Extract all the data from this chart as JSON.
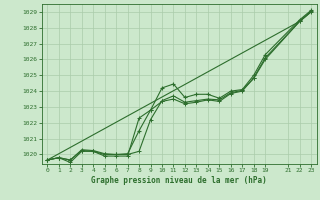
{
  "bg_color": "#cce8cc",
  "grid_color": "#aaccaa",
  "line_color": "#2d6e2d",
  "xlabel": "Graphe pression niveau de la mer (hPa)",
  "xlim": [
    -0.5,
    23.5
  ],
  "ylim": [
    1019.4,
    1029.5
  ],
  "yticks": [
    1020,
    1021,
    1022,
    1023,
    1024,
    1025,
    1026,
    1027,
    1028,
    1029
  ],
  "xticks": [
    0,
    1,
    2,
    3,
    4,
    5,
    6,
    7,
    8,
    9,
    10,
    11,
    12,
    13,
    14,
    15,
    16,
    17,
    18,
    19,
    21,
    22,
    23
  ],
  "line1_x": [
    0,
    1,
    2,
    3,
    4,
    5,
    6,
    7,
    8,
    9,
    10,
    11,
    12,
    13,
    14,
    15,
    16,
    17,
    18,
    19,
    22,
    23
  ],
  "line1_y": [
    1019.65,
    1019.8,
    1019.65,
    1020.3,
    1020.25,
    1020.05,
    1020.0,
    1020.05,
    1021.5,
    1022.8,
    1024.2,
    1024.45,
    1023.6,
    1023.8,
    1023.8,
    1023.55,
    1024.0,
    1024.1,
    1025.0,
    1026.3,
    1028.5,
    1029.1
  ],
  "line2_x": [
    0,
    1,
    2,
    3,
    4,
    5,
    6,
    7,
    8,
    9,
    10,
    11,
    12,
    13,
    14,
    15,
    16,
    17,
    18,
    19,
    22,
    23
  ],
  "line2_y": [
    1019.65,
    1019.8,
    1019.65,
    1020.25,
    1020.2,
    1020.0,
    1020.0,
    1020.0,
    1020.2,
    1022.2,
    1023.4,
    1023.7,
    1023.3,
    1023.4,
    1023.5,
    1023.45,
    1023.9,
    1024.05,
    1024.8,
    1026.0,
    1028.4,
    1029.0
  ],
  "line3_x": [
    0,
    1,
    2,
    3,
    4,
    5,
    6,
    7,
    8,
    9,
    10,
    11,
    12,
    13,
    14,
    15,
    16,
    17,
    18,
    19,
    22,
    23
  ],
  "line3_y": [
    1019.65,
    1019.8,
    1019.5,
    1020.2,
    1020.2,
    1019.9,
    1019.9,
    1019.9,
    1022.3,
    1022.8,
    1023.35,
    1023.5,
    1023.2,
    1023.3,
    1023.45,
    1023.35,
    1023.85,
    1024.0,
    1024.85,
    1026.1,
    1028.4,
    1029.05
  ],
  "line4_x": [
    0,
    22,
    23
  ],
  "line4_y": [
    1019.65,
    1028.4,
    1029.0
  ]
}
